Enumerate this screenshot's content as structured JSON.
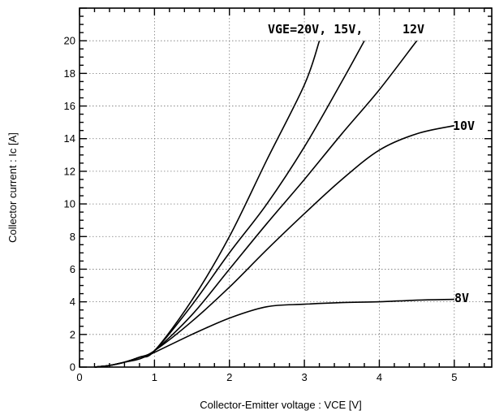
{
  "chart_data": {
    "type": "line",
    "xlabel": "Collector-Emitter voltage : VCE [V]",
    "ylabel": "Collector current : Ic [A]",
    "xlim": [
      0,
      5.5
    ],
    "ylim": [
      0,
      22
    ],
    "x_ticks": [
      "0",
      "1",
      "2",
      "3",
      "4",
      "5"
    ],
    "y_ticks": [
      "0",
      "2",
      "4",
      "6",
      "8",
      "10",
      "12",
      "14",
      "16",
      "18",
      "20"
    ],
    "grid": true,
    "annotations": [
      "VGE=20V, 15V,",
      "12V",
      "10V",
      "8V"
    ],
    "series": [
      {
        "name": "VGE=20V",
        "x": [
          0.2,
          0.4,
          0.6,
          0.8,
          1.0,
          1.5,
          2.0,
          2.5,
          3.0,
          3.2
        ],
        "y": [
          0,
          0.1,
          0.3,
          0.6,
          1.0,
          4.1,
          8.0,
          12.7,
          17.3,
          20.0
        ]
      },
      {
        "name": "15V",
        "x": [
          0.2,
          0.4,
          0.6,
          0.8,
          1.0,
          1.5,
          2.0,
          2.5,
          3.0,
          3.5,
          3.8
        ],
        "y": [
          0,
          0.1,
          0.3,
          0.6,
          1.0,
          3.8,
          7.0,
          10.0,
          13.5,
          17.5,
          20.0
        ]
      },
      {
        "name": "12V",
        "x": [
          0.2,
          0.4,
          0.6,
          0.8,
          1.0,
          1.5,
          2.0,
          2.5,
          3.0,
          3.5,
          4.0,
          4.5
        ],
        "y": [
          0,
          0.1,
          0.3,
          0.6,
          1.0,
          3.2,
          6.0,
          8.8,
          11.5,
          14.3,
          17.0,
          20.0
        ]
      },
      {
        "name": "10V",
        "x": [
          0.2,
          0.4,
          0.6,
          0.8,
          1.0,
          1.5,
          2.0,
          2.5,
          3.0,
          3.5,
          4.0,
          4.5,
          5.0
        ],
        "y": [
          0,
          0.1,
          0.3,
          0.6,
          1.0,
          2.8,
          4.9,
          7.2,
          9.4,
          11.5,
          13.3,
          14.3,
          14.8
        ]
      },
      {
        "name": "8V",
        "x": [
          0.2,
          0.4,
          0.6,
          0.8,
          1.0,
          1.5,
          2.0,
          2.5,
          3.0,
          3.5,
          4.0,
          4.5,
          5.0
        ],
        "y": [
          0,
          0.1,
          0.3,
          0.5,
          0.9,
          2.0,
          3.0,
          3.7,
          3.85,
          3.95,
          4.0,
          4.1,
          4.15
        ]
      }
    ]
  }
}
